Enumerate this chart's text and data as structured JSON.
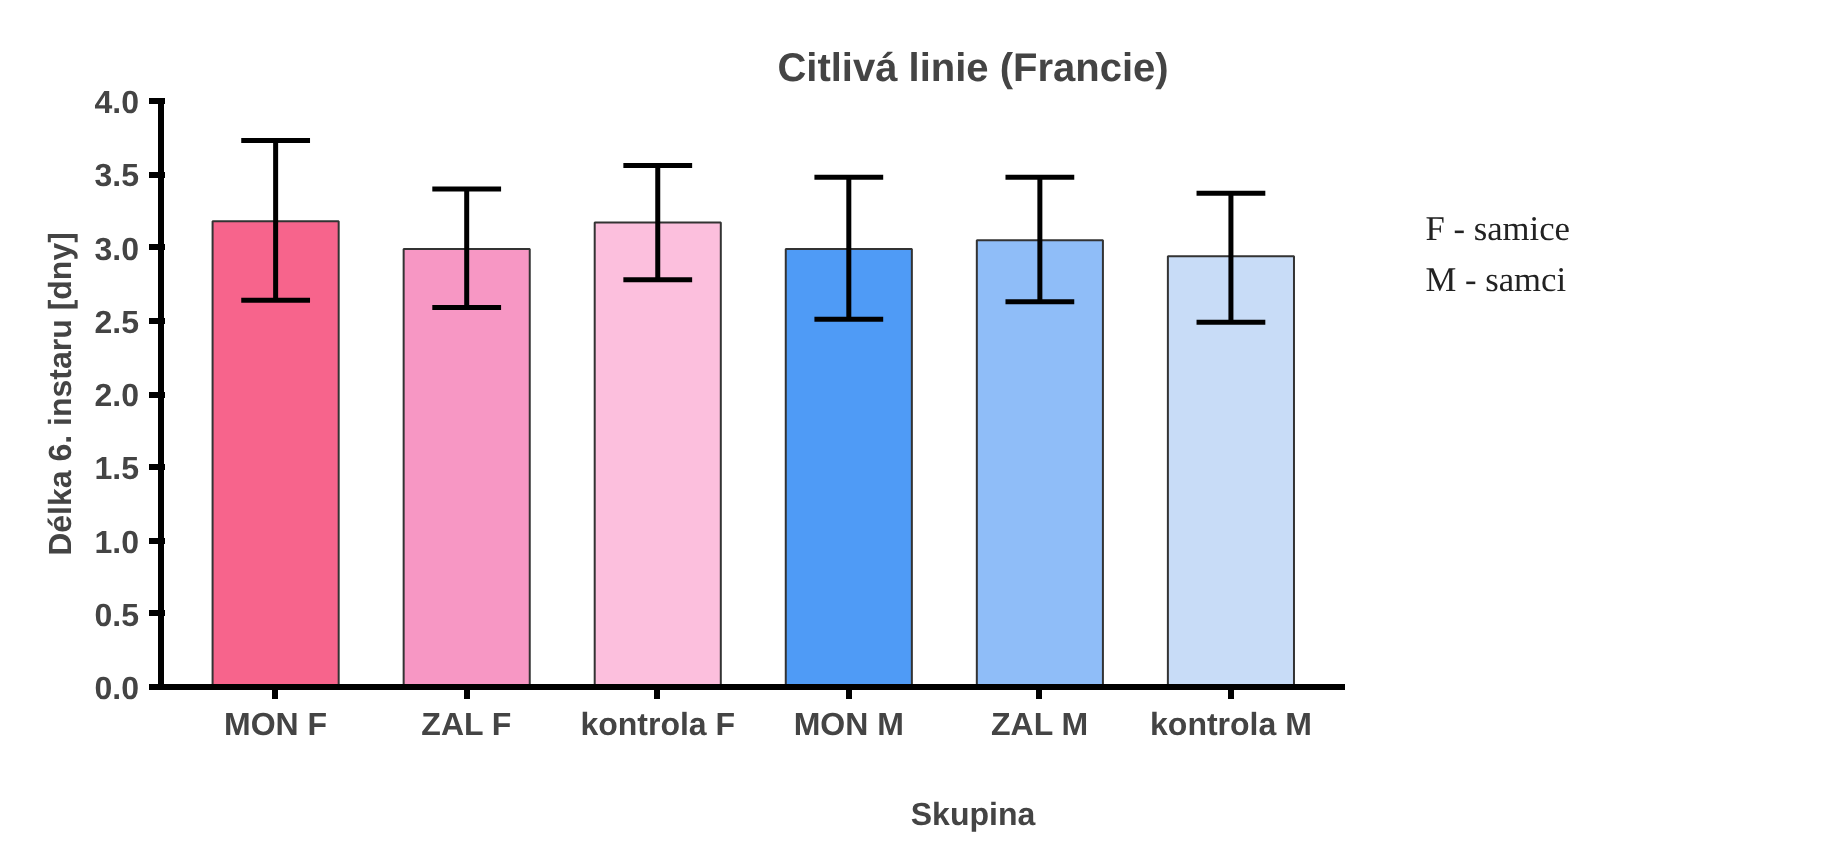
{
  "chart_data": {
    "type": "bar",
    "title": "Citlivá linie (Francie)",
    "xlabel": "Skupina",
    "ylabel": "Délka 6. instaru [dny]",
    "categories": [
      "MON F",
      "ZAL F",
      "kontrola F",
      "MON M",
      "ZAL M",
      "kontrola M"
    ],
    "values": [
      3.18,
      2.99,
      3.17,
      2.99,
      3.05,
      2.94
    ],
    "errors": [
      [
        2.64,
        3.73
      ],
      [
        2.59,
        3.4
      ],
      [
        2.78,
        3.56
      ],
      [
        2.51,
        3.48
      ],
      [
        2.63,
        3.48
      ],
      [
        2.49,
        3.37
      ]
    ],
    "colors": [
      "#f7648c",
      "#f797c4",
      "#fcbfdd",
      "#4f9bf6",
      "#8fbdf8",
      "#c8dcf7"
    ],
    "ylim": [
      0,
      4
    ],
    "yticks": [
      {
        "value": 0,
        "label": "0.0"
      },
      0.5,
      {
        "value": 1,
        "label": "1.0"
      },
      1.5,
      {
        "value": 2,
        "label": "2.0"
      },
      2.5,
      {
        "value": 3,
        "label": "3.0"
      },
      3.5,
      {
        "value": 4,
        "label": "4.0"
      }
    ],
    "grid": false,
    "annotations": [
      "F - samice",
      "M - samci"
    ]
  }
}
